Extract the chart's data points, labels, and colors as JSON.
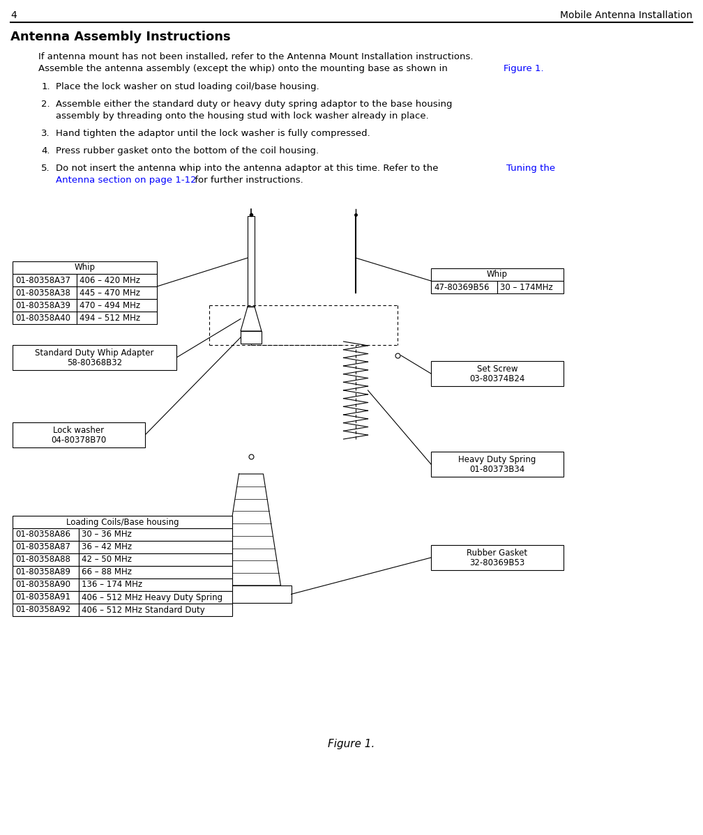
{
  "page_number": "4",
  "header_right": "Mobile Antenna Installation",
  "title": "Antenna Assembly Instructions",
  "intro_line1": "If antenna mount has not been installed, refer to the Antenna Mount Installation instructions.",
  "intro_line2_black": "Assemble the antenna assembly (except the whip) onto the mounting base as shown in ",
  "intro_line2_blue": "Figure 1.",
  "figure_caption": "Figure 1.",
  "whip_table_left": {
    "header": "Whip",
    "rows": [
      [
        "01-80358A37",
        "406 – 420 MHz"
      ],
      [
        "01-80358A38",
        "445 – 470 MHz"
      ],
      [
        "01-80358A39",
        "470 – 494 MHz"
      ],
      [
        "01-80358A40",
        "494 – 512 MHz"
      ]
    ]
  },
  "whip_table_right": {
    "header": "Whip",
    "rows": [
      [
        "47-80369B56",
        "30 – 174MHz"
      ]
    ]
  },
  "adapter_box": {
    "line1": "Standard Duty Whip Adapter",
    "line2": "58-80368B32"
  },
  "set_screw_box": {
    "line1": "Set Screw",
    "line2": "03-80374B24"
  },
  "lock_washer_box": {
    "line1": "Lock washer",
    "line2": "04-80378B70"
  },
  "heavy_duty_spring_box": {
    "line1": "Heavy Duty Spring",
    "line2": "01-80373B34"
  },
  "loading_coils_table": {
    "header": "Loading Coils/Base housing",
    "rows": [
      [
        "01-80358A86",
        "30 – 36 MHz"
      ],
      [
        "01-80358A87",
        "36 – 42 MHz"
      ],
      [
        "01-80358A88",
        "42 – 50 MHz"
      ],
      [
        "01-80358A89",
        "66 – 88 MHz"
      ],
      [
        "01-80358A90",
        "136 – 174 MHz"
      ],
      [
        "01-80358A91",
        "406 – 512 MHz Heavy Duty Spring"
      ],
      [
        "01-80358A92",
        "406 – 512 MHz Standard Duty"
      ]
    ]
  },
  "rubber_gasket_box": {
    "line1": "Rubber Gasket",
    "line2": "32-80369B53"
  }
}
